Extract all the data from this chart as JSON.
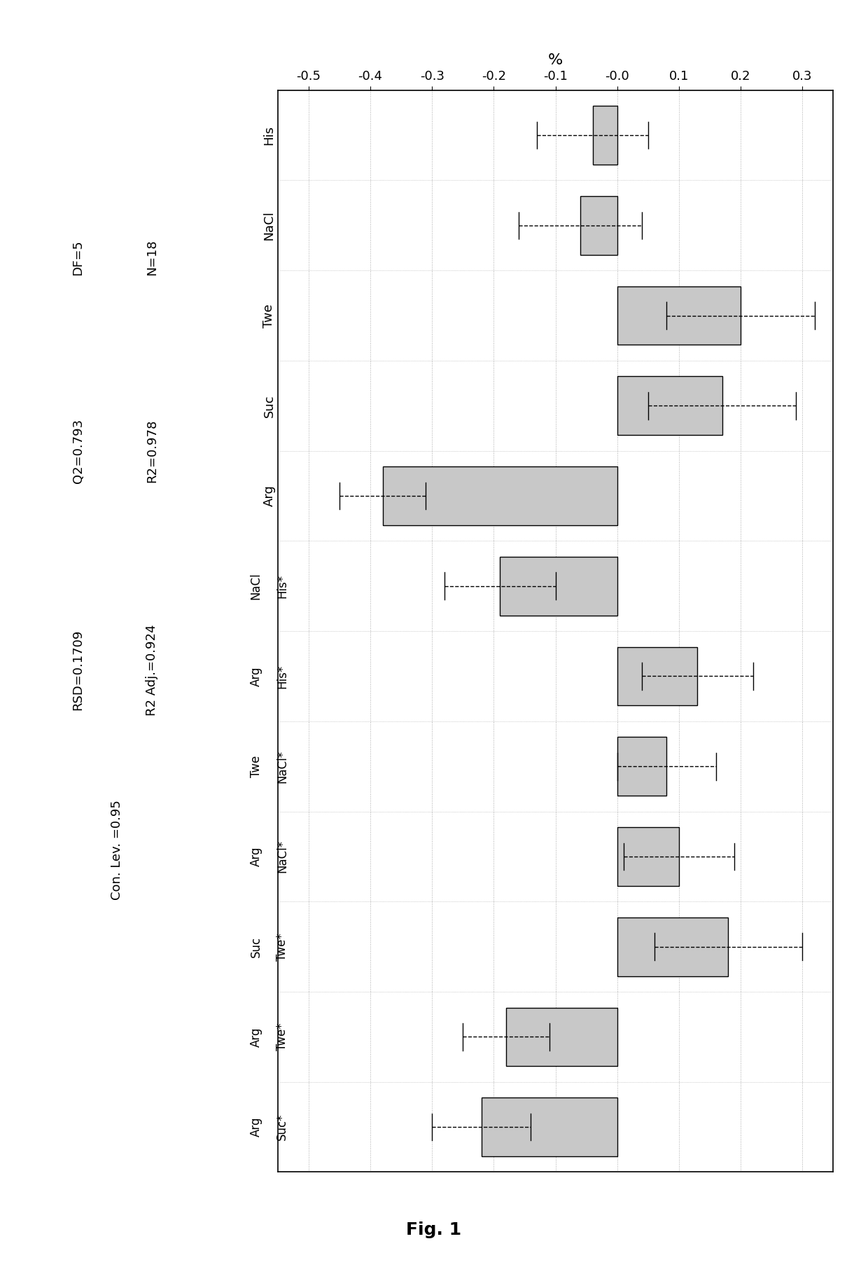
{
  "categories": [
    "His",
    "NaCl",
    "Twe",
    "Suc",
    "Arg",
    "His*\nNaCl",
    "His*\nArg",
    "NaCl*\nTwe",
    "NaCl*\nArg",
    "Twe*\nSuc",
    "Twe*\nArg",
    "Suc*\nArg"
  ],
  "ytick_lines1": [
    "His",
    "NaCl",
    "Twe",
    "Suc",
    "Arg",
    "His*",
    "His*",
    "NaCl*",
    "NaCl*",
    "Twe*",
    "Twe*",
    "Suc*"
  ],
  "ytick_lines2": [
    "",
    "",
    "",
    "",
    "",
    "NaCl",
    "Arg",
    "Twe",
    "Arg",
    "Suc",
    "Arg",
    "Arg"
  ],
  "values": [
    -0.04,
    -0.06,
    0.2,
    0.17,
    -0.38,
    -0.19,
    0.13,
    0.08,
    0.1,
    0.18,
    -0.18,
    -0.22
  ],
  "errors": [
    0.09,
    0.1,
    0.12,
    0.12,
    0.07,
    0.09,
    0.09,
    0.08,
    0.09,
    0.12,
    0.07,
    0.08
  ],
  "bar_color": "#c8c8c8",
  "bar_edgecolor": "#000000",
  "error_color": "#000000",
  "xlabel": "%",
  "xlim": [
    -0.55,
    0.35
  ],
  "xticks": [
    -0.5,
    -0.4,
    -0.3,
    -0.2,
    -0.1,
    0.0,
    0.1,
    0.2,
    0.3
  ],
  "xticklabels": [
    "-0.5",
    "-0.4",
    "-0.3",
    "-0.2",
    "-0.1",
    "-0.0",
    "0.1",
    "0.2",
    "0.3"
  ],
  "stats_lines": [
    [
      "N=18",
      "DF=5"
    ],
    [
      "R2=0.978",
      "Q2=0.793"
    ],
    [
      "R2 Adj.=0.924",
      "RSD=0.1709"
    ],
    [
      "Con. Lev. =0.95"
    ]
  ],
  "fig_title": "Fig. 1",
  "background_color": "#ffffff",
  "grid_color": "#aaaaaa"
}
